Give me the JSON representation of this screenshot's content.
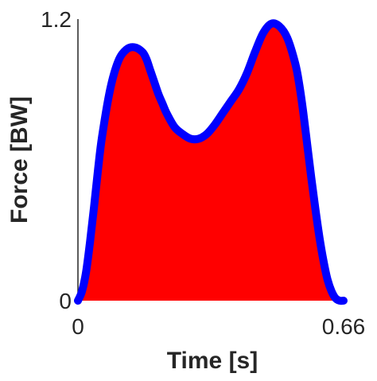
{
  "chart_data": {
    "type": "area",
    "xlabel": "Time [s]",
    "ylabel": "Force [BW]",
    "xlim": [
      0,
      0.66
    ],
    "ylim": [
      0,
      1.2
    ],
    "x_ticks": [
      "0",
      "0.66"
    ],
    "y_ticks": [
      "0",
      "1.2"
    ],
    "grid": false,
    "legend": "none",
    "fill_color": "#ff0000",
    "line_color": "#0000ff",
    "series": [
      {
        "x": [
          0.0,
          0.01,
          0.02,
          0.03,
          0.04,
          0.05,
          0.06,
          0.08,
          0.1,
          0.12,
          0.14,
          0.16,
          0.17,
          0.18,
          0.19,
          0.2,
          0.21,
          0.22,
          0.24,
          0.26,
          0.28,
          0.3,
          0.32,
          0.34,
          0.36,
          0.38,
          0.4,
          0.42,
          0.44,
          0.46,
          0.48,
          0.5,
          0.52,
          0.54,
          0.55,
          0.56,
          0.57,
          0.58,
          0.59,
          0.6,
          0.61,
          0.62,
          0.63,
          0.64,
          0.65,
          0.66
        ],
        "values": [
          0.0,
          0.04,
          0.12,
          0.25,
          0.4,
          0.56,
          0.7,
          0.9,
          1.02,
          1.07,
          1.08,
          1.06,
          1.03,
          0.98,
          0.93,
          0.88,
          0.84,
          0.8,
          0.74,
          0.71,
          0.69,
          0.69,
          0.71,
          0.75,
          0.8,
          0.85,
          0.9,
          0.97,
          1.06,
          1.14,
          1.18,
          1.17,
          1.12,
          1.01,
          0.92,
          0.8,
          0.66,
          0.52,
          0.39,
          0.27,
          0.17,
          0.09,
          0.04,
          0.01,
          0.0,
          0.0
        ]
      }
    ]
  }
}
